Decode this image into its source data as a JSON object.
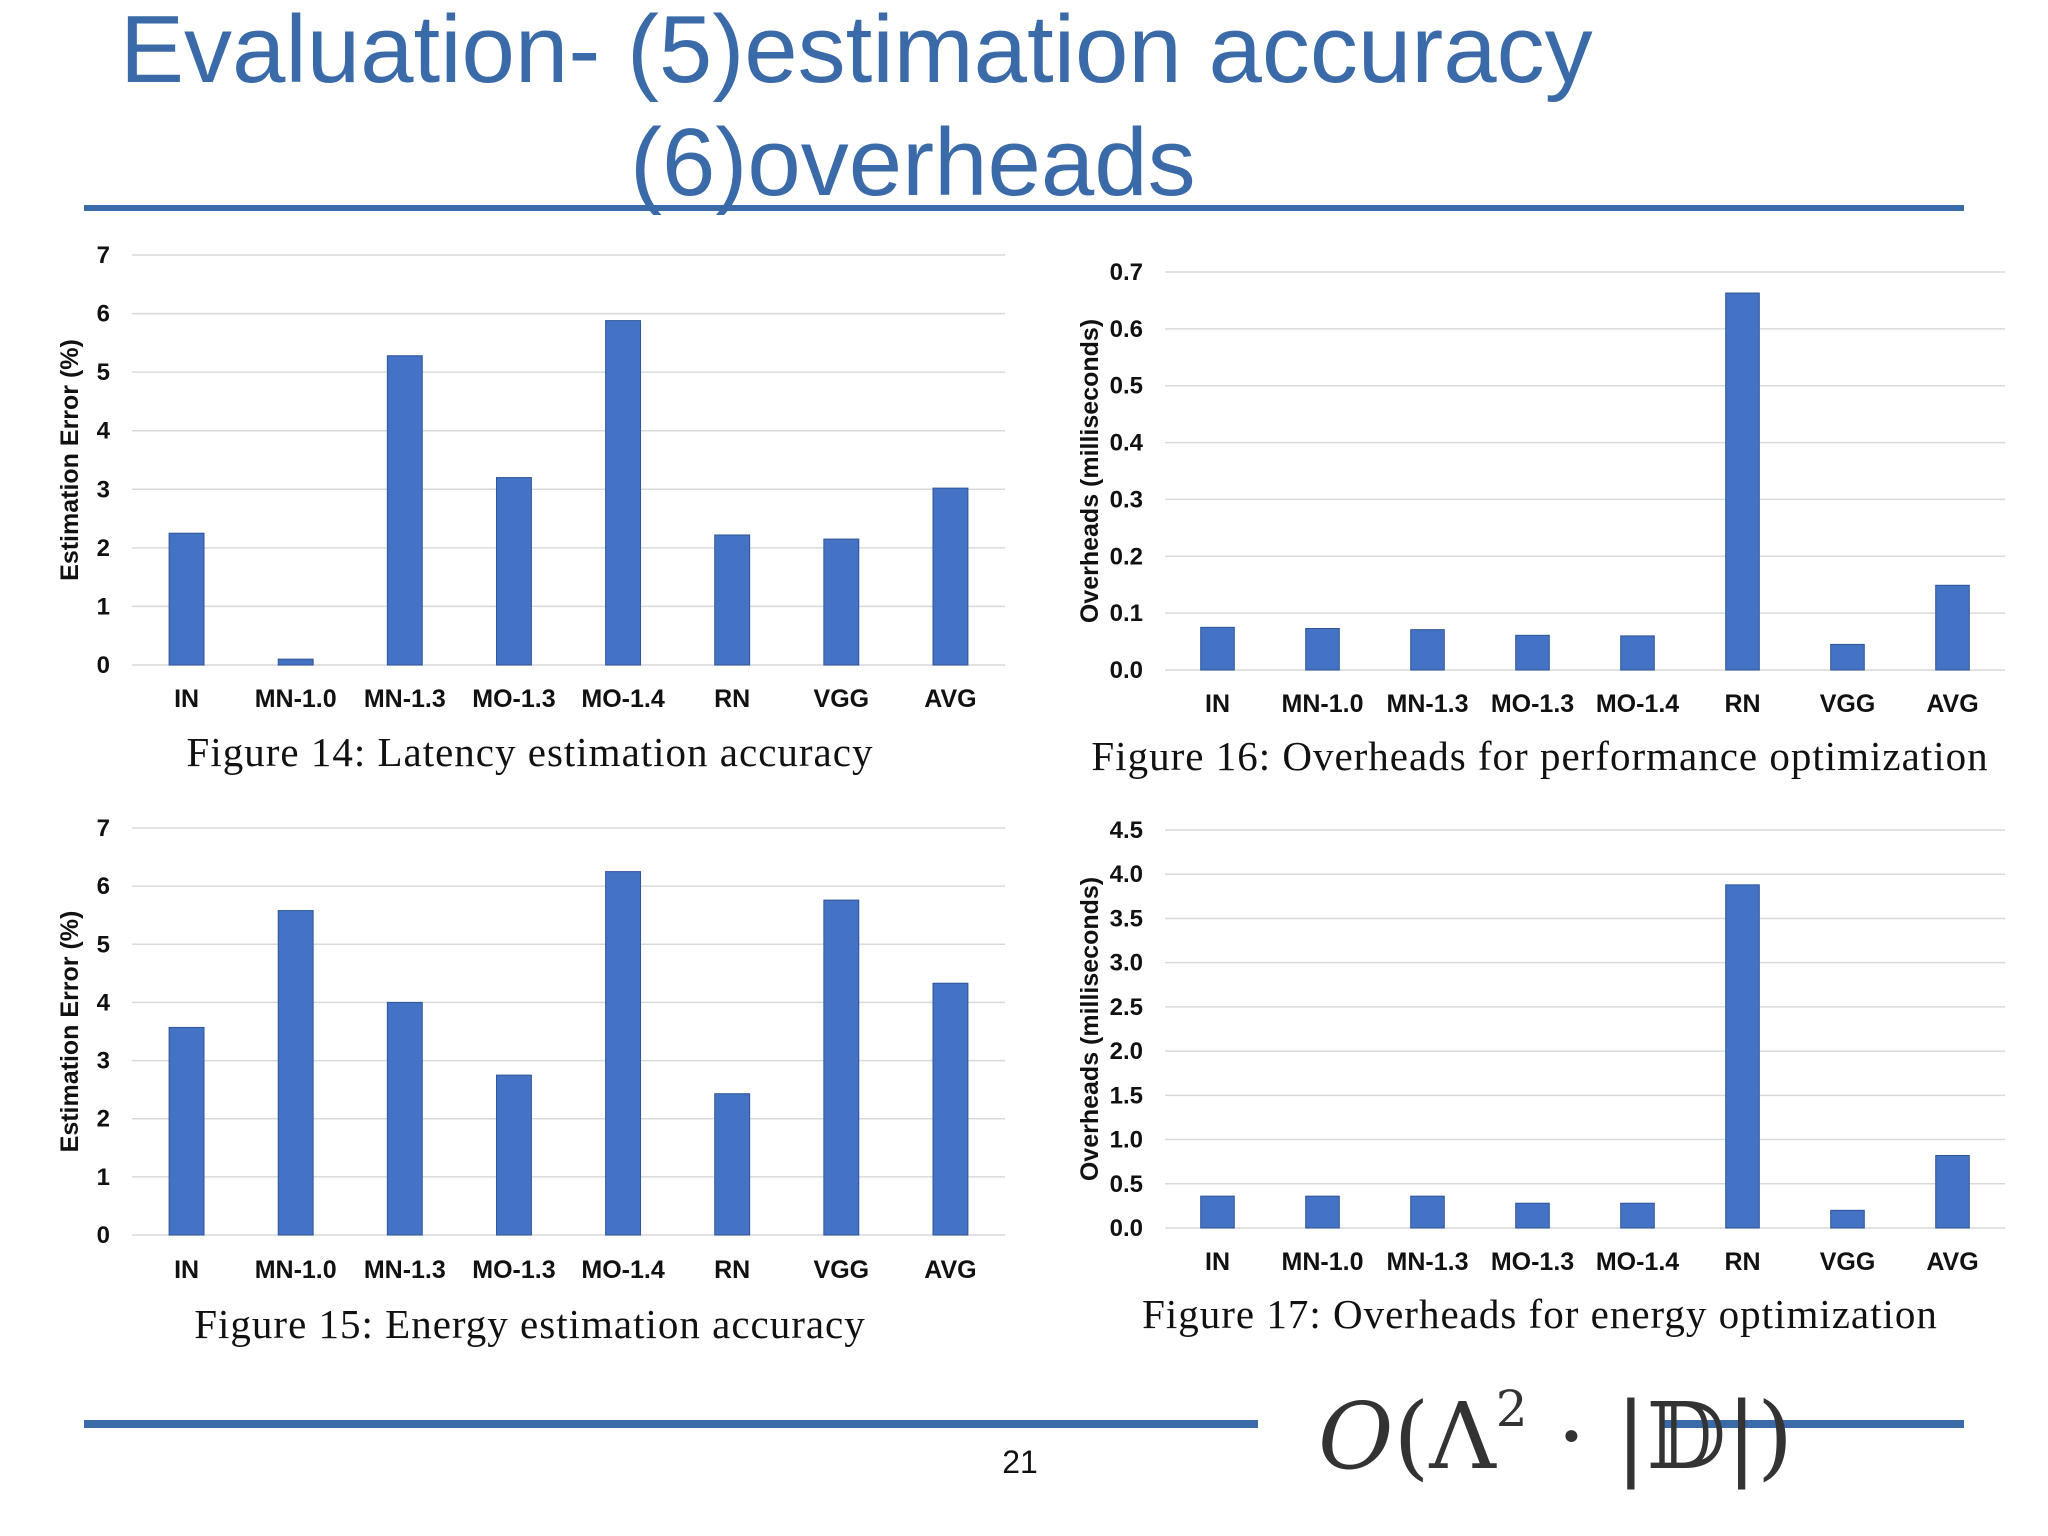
{
  "slide": {
    "title_line1": "Evaluation- (5)estimation accuracy",
    "title_line2": "(6)overheads",
    "page_number": "21",
    "formula": {
      "O": "O",
      "lambda": "Λ",
      "exp": "2",
      "dot": "·",
      "D": "𝔻"
    }
  },
  "chart_data": [
    {
      "type": "bar",
      "caption": "Figure 14: Latency estimation accuracy",
      "ylabel": "Estimation Error (%)",
      "categories": [
        "IN",
        "MN-1.0",
        "MN-1.3",
        "MO-1.3",
        "MO-1.4",
        "RN",
        "VGG",
        "AVG"
      ],
      "values": [
        2.25,
        0.1,
        5.28,
        3.2,
        5.88,
        2.22,
        2.15,
        3.02
      ],
      "ylim": [
        0,
        7
      ],
      "yticks": [
        0,
        1,
        2,
        3,
        4,
        5,
        6,
        7
      ],
      "ytick_labels": [
        "0",
        "1",
        "2",
        "3",
        "4",
        "5",
        "6",
        "7"
      ],
      "grid": true,
      "color": "#4472c4"
    },
    {
      "type": "bar",
      "caption": "Figure 16: Overheads for performance optimization",
      "ylabel": "Overheads (milliseconds)",
      "categories": [
        "IN",
        "MN-1.0",
        "MN-1.3",
        "MO-1.3",
        "MO-1.4",
        "RN",
        "VGG",
        "AVG"
      ],
      "values": [
        0.075,
        0.073,
        0.071,
        0.061,
        0.06,
        0.663,
        0.045,
        0.149
      ],
      "ylim": [
        0,
        0.7
      ],
      "yticks": [
        0,
        0.1,
        0.2,
        0.3,
        0.4,
        0.5,
        0.6,
        0.7
      ],
      "ytick_labels": [
        "0.0",
        "0.1",
        "0.2",
        "0.3",
        "0.4",
        "0.5",
        "0.6",
        "0.7"
      ],
      "grid": true,
      "color": "#4472c4"
    },
    {
      "type": "bar",
      "caption": "Figure 15: Energy estimation accuracy",
      "ylabel": "Estimation Error (%)",
      "categories": [
        "IN",
        "MN-1.0",
        "MN-1.3",
        "MO-1.3",
        "MO-1.4",
        "RN",
        "VGG",
        "AVG"
      ],
      "values": [
        3.57,
        5.58,
        4.0,
        2.75,
        6.25,
        2.43,
        5.76,
        4.33
      ],
      "ylim": [
        0,
        7
      ],
      "yticks": [
        0,
        1,
        2,
        3,
        4,
        5,
        6,
        7
      ],
      "ytick_labels": [
        "0",
        "1",
        "2",
        "3",
        "4",
        "5",
        "6",
        "7"
      ],
      "grid": true,
      "color": "#4472c4"
    },
    {
      "type": "bar",
      "caption": "Figure 17: Overheads for energy optimization",
      "ylabel": "Overheads (milliseconds)",
      "categories": [
        "IN",
        "MN-1.0",
        "MN-1.3",
        "MO-1.3",
        "MO-1.4",
        "RN",
        "VGG",
        "AVG"
      ],
      "values": [
        0.36,
        0.36,
        0.36,
        0.28,
        0.28,
        3.88,
        0.2,
        0.82
      ],
      "ylim": [
        0,
        4.5
      ],
      "yticks": [
        0,
        0.5,
        1.0,
        1.5,
        2.0,
        2.5,
        3.0,
        3.5,
        4.0,
        4.5
      ],
      "ytick_labels": [
        "0.0",
        "0.5",
        "1.0",
        "1.5",
        "2.0",
        "2.5",
        "3.0",
        "3.5",
        "4.0",
        "4.5"
      ],
      "grid": true,
      "color": "#4472c4"
    }
  ]
}
